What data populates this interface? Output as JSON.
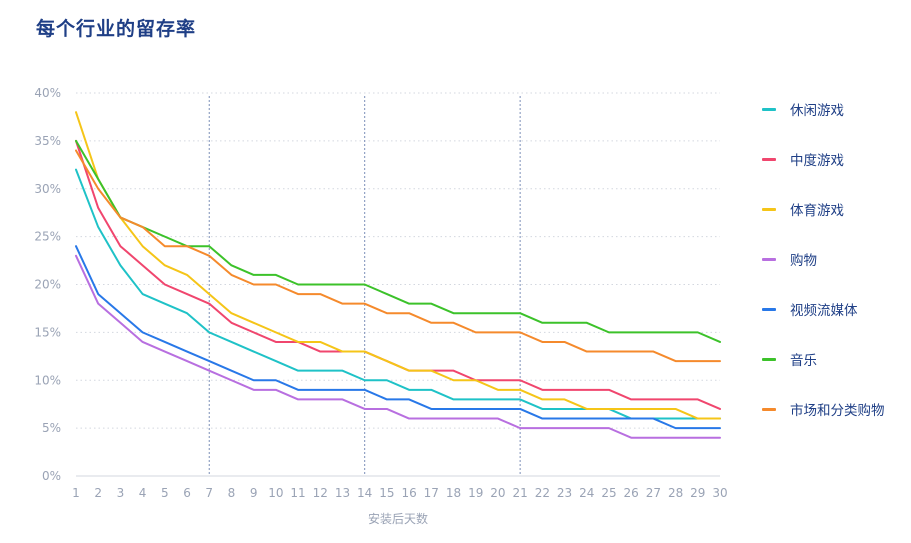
{
  "title": "每个行业的留存率",
  "chart_data": {
    "type": "line",
    "title": "每个行业的留存率",
    "xlabel": "安装后天数",
    "ylabel": "",
    "x": [
      1,
      2,
      3,
      4,
      5,
      6,
      7,
      8,
      9,
      10,
      11,
      12,
      13,
      14,
      15,
      16,
      17,
      18,
      19,
      20,
      21,
      22,
      23,
      24,
      25,
      26,
      27,
      28,
      29,
      30
    ],
    "ylim": [
      0,
      40
    ],
    "yticks": [
      "0%",
      "5%",
      "10%",
      "15%",
      "20%",
      "25%",
      "30%",
      "35%",
      "40%"
    ],
    "ytick_values": [
      0,
      5,
      10,
      15,
      20,
      25,
      30,
      35,
      40
    ],
    "reference_lines_x": [
      7,
      14,
      21
    ],
    "grid": "horizontal dotted",
    "legend_position": "right",
    "series": [
      {
        "name": "休闲游戏",
        "color": "#1fc2c7",
        "values": [
          32,
          26,
          22,
          19,
          18,
          17,
          15,
          14,
          13,
          12,
          11,
          11,
          11,
          10,
          10,
          9,
          9,
          8,
          8,
          8,
          8,
          7,
          7,
          7,
          7,
          6,
          6,
          6,
          6,
          6
        ]
      },
      {
        "name": "中度游戏",
        "color": "#f0466e",
        "values": [
          35,
          28,
          24,
          22,
          20,
          19,
          18,
          16,
          15,
          14,
          14,
          13,
          13,
          13,
          12,
          11,
          11,
          11,
          10,
          10,
          10,
          9,
          9,
          9,
          9,
          8,
          8,
          8,
          8,
          7
        ]
      },
      {
        "name": "体育游戏",
        "color": "#f5c518",
        "values": [
          38,
          31,
          27,
          24,
          22,
          21,
          19,
          17,
          16,
          15,
          14,
          14,
          13,
          13,
          12,
          11,
          11,
          10,
          10,
          9,
          9,
          8,
          8,
          7,
          7,
          7,
          7,
          7,
          6,
          6
        ]
      },
      {
        "name": "购物",
        "color": "#b86fe0",
        "values": [
          23,
          18,
          16,
          14,
          13,
          12,
          11,
          10,
          9,
          9,
          8,
          8,
          8,
          7,
          7,
          6,
          6,
          6,
          6,
          6,
          5,
          5,
          5,
          5,
          5,
          4,
          4,
          4,
          4,
          4
        ]
      },
      {
        "name": "视频流媒体",
        "color": "#2878e8",
        "values": [
          24,
          19,
          17,
          15,
          14,
          13,
          12,
          11,
          10,
          10,
          9,
          9,
          9,
          9,
          8,
          8,
          7,
          7,
          7,
          7,
          7,
          6,
          6,
          6,
          6,
          6,
          6,
          5,
          5,
          5
        ]
      },
      {
        "name": "音乐",
        "color": "#3cc22a",
        "values": [
          35,
          31,
          27,
          26,
          25,
          24,
          24,
          22,
          21,
          21,
          20,
          20,
          20,
          20,
          19,
          18,
          18,
          17,
          17,
          17,
          17,
          16,
          16,
          16,
          15,
          15,
          15,
          15,
          15,
          14
        ]
      },
      {
        "name": "市场和分类购物",
        "color": "#f58a2c",
        "values": [
          34,
          30,
          27,
          26,
          24,
          24,
          23,
          21,
          20,
          20,
          19,
          19,
          18,
          18,
          17,
          17,
          16,
          16,
          15,
          15,
          15,
          14,
          14,
          13,
          13,
          13,
          13,
          12,
          12,
          12
        ]
      }
    ]
  }
}
